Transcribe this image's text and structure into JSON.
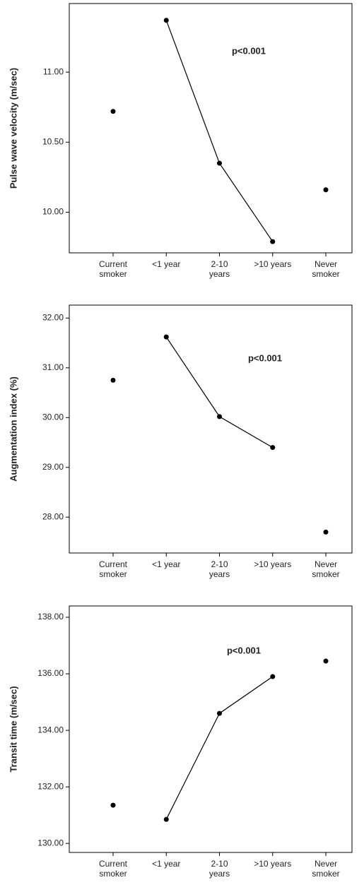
{
  "chart_data": [
    {
      "type": "line",
      "y_label": "Pulse wave velocity (m/sec)",
      "annotation": "p<0.001",
      "categories": [
        [
          "Current",
          "smoker"
        ],
        [
          "<1 year"
        ],
        [
          "2-10",
          "years"
        ],
        [
          ">10 years"
        ],
        [
          "Never",
          "smoker"
        ]
      ],
      "values": [
        10.72,
        11.37,
        10.35,
        9.79,
        10.16
      ],
      "connected_range": [
        1,
        3
      ],
      "color": "#000000",
      "ylim": [
        9.71,
        11.49
      ],
      "yticks": [
        {
          "value": 10,
          "label": "10.00"
        },
        {
          "value": 10.5,
          "label": "10.50"
        },
        {
          "value": 11,
          "label": "11.00"
        }
      ]
    },
    {
      "type": "line",
      "y_label": "Augmentation index (%)",
      "annotation": "p<0.001",
      "categories": [
        [
          "Current",
          "smoker"
        ],
        [
          "<1 year"
        ],
        [
          "2-10",
          "years"
        ],
        [
          ">10 years"
        ],
        [
          "Never",
          "smoker"
        ]
      ],
      "values": [
        30.75,
        31.62,
        30.02,
        29.4,
        27.7
      ],
      "connected_range": [
        1,
        3
      ],
      "color": "#000000",
      "ylim": [
        27.28,
        32.26
      ],
      "yticks": [
        {
          "value": 28,
          "label": "28.00"
        },
        {
          "value": 29,
          "label": "29.00"
        },
        {
          "value": 30,
          "label": "30.00"
        },
        {
          "value": 31,
          "label": "31.00"
        },
        {
          "value": 32,
          "label": "32.00"
        }
      ]
    },
    {
      "type": "line",
      "y_label": "Transit time (m/sec)",
      "annotation": "p<0.001",
      "categories": [
        [
          "Current",
          "smoker"
        ],
        [
          "<1 year"
        ],
        [
          "2-10",
          "years"
        ],
        [
          ">10 years"
        ],
        [
          "Never",
          "smoker"
        ]
      ],
      "values": [
        131.35,
        130.85,
        134.6,
        135.9,
        136.45
      ],
      "connected_range": [
        1,
        3
      ],
      "color": "#000000",
      "ylim": [
        129.68,
        138.4
      ],
      "yticks": [
        {
          "value": 130,
          "label": "130.00"
        },
        {
          "value": 132,
          "label": "132.00"
        },
        {
          "value": 134,
          "label": "134.00"
        },
        {
          "value": 136,
          "label": "136.00"
        },
        {
          "value": 138,
          "label": "138.00"
        }
      ]
    }
  ]
}
